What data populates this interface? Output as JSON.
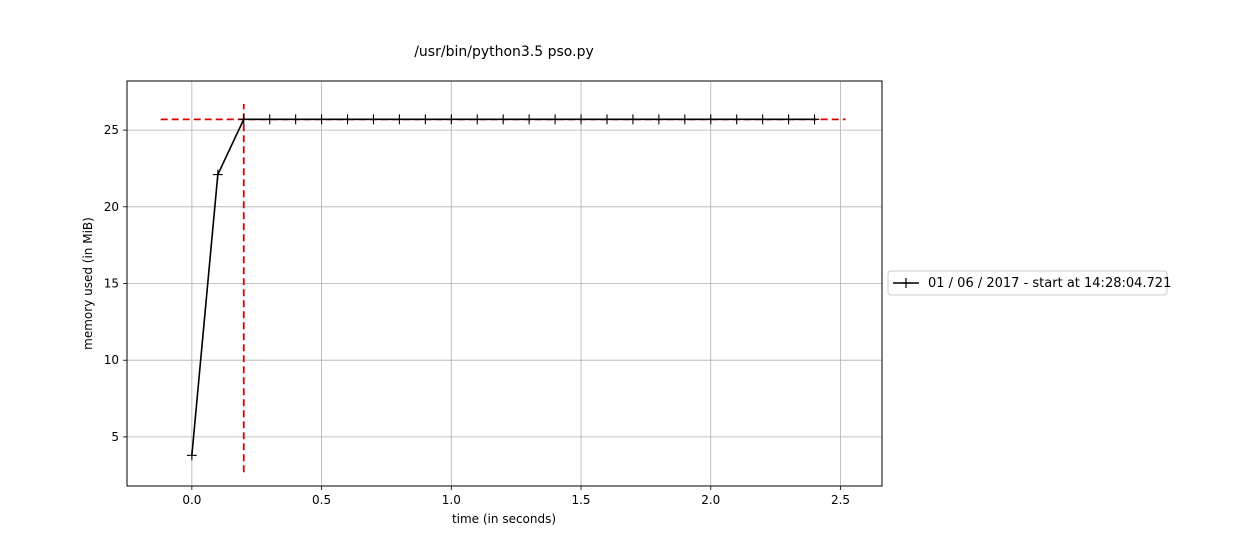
{
  "chart_data": {
    "type": "line",
    "title": "/usr/bin/python3.5 pso.py",
    "xlabel": "time (in seconds)",
    "ylabel": "memory used (in MiB)",
    "xlim": [
      -0.25,
      2.66
    ],
    "ylim": [
      1.8,
      28.2
    ],
    "xticks": [
      0.0,
      0.5,
      1.0,
      1.5,
      2.0,
      2.5
    ],
    "xtick_labels": [
      "0.0",
      "0.5",
      "1.0",
      "1.5",
      "2.0",
      "2.5"
    ],
    "yticks": [
      5,
      10,
      15,
      20,
      25
    ],
    "ytick_labels": [
      "5",
      "10",
      "15",
      "20",
      "25"
    ],
    "grid": true,
    "legend_position": "outside-right",
    "series": [
      {
        "name": "01 / 06 / 2017 - start at 14:28:04.721",
        "color": "#000000",
        "marker": "+",
        "x": [
          0.0,
          0.1,
          0.2,
          0.3,
          0.4,
          0.5,
          0.6,
          0.7,
          0.8,
          0.9,
          1.0,
          1.1,
          1.2,
          1.3,
          1.4,
          1.5,
          1.6,
          1.7,
          1.8,
          1.9,
          2.0,
          2.1,
          2.2,
          2.3,
          2.4
        ],
        "y": [
          3.8,
          22.1,
          25.7,
          25.7,
          25.7,
          25.7,
          25.7,
          25.7,
          25.7,
          25.7,
          25.7,
          25.7,
          25.7,
          25.7,
          25.7,
          25.7,
          25.7,
          25.7,
          25.7,
          25.7,
          25.7,
          25.7,
          25.7,
          25.7,
          25.7
        ]
      }
    ],
    "peak_markers": {
      "color": "#dd0000",
      "style": "dashed",
      "horizontal": {
        "y": 25.7,
        "x_from": -0.12,
        "x_to": 2.52
      },
      "vertical": {
        "x": 0.2,
        "y_from": 2.7,
        "y_to": 26.7
      }
    }
  }
}
